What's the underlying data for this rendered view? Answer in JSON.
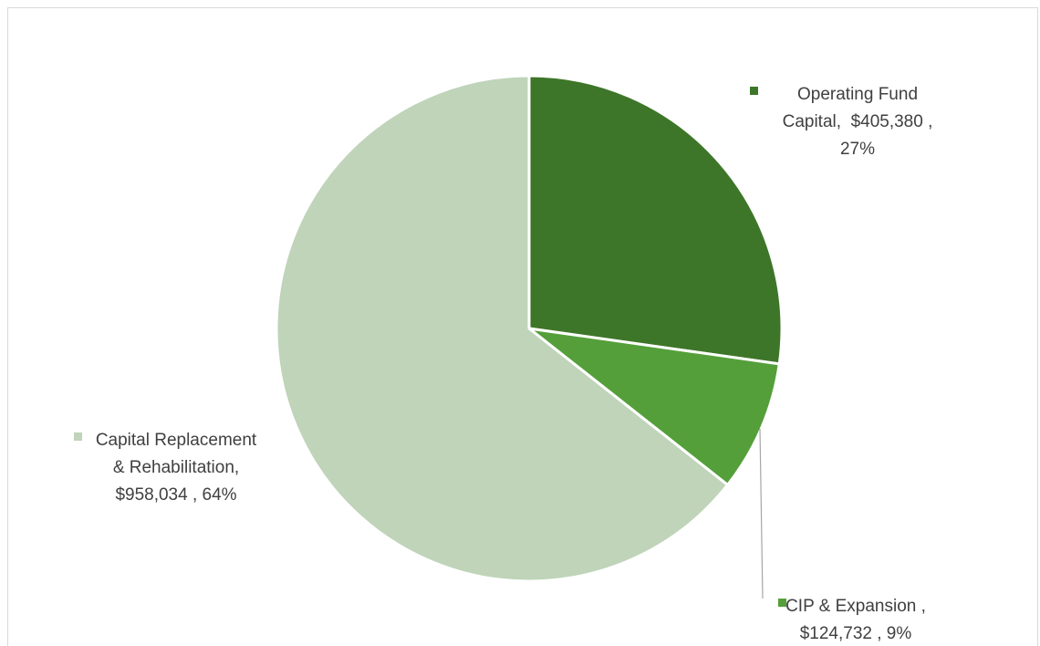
{
  "chart_data": {
    "type": "pie",
    "title": "",
    "legend": "none",
    "slices": [
      {
        "name": "Operating Fund Capital",
        "value": 405380,
        "value_text": "$405,380",
        "percent_text": "27%",
        "color": "#3e7629",
        "label_lines": [
          "Operating Fund",
          "Capital,  $405,380 ,",
          "27%"
        ]
      },
      {
        "name": "CIP & Expansion",
        "value": 124732,
        "value_text": "$124,732",
        "percent_text": "9%",
        "color": "#549f3a",
        "label_lines": [
          "CIP & Expansion ,",
          "$124,732 , 9%"
        ]
      },
      {
        "name": "Capital Replacement & Rehabilitation",
        "value": 958034,
        "value_text": "$958,034",
        "percent_text": "64%",
        "color": "#bfd4b9",
        "label_lines": [
          "Capital Replacement",
          "& Rehabilitation,",
          "$958,034 , 64%"
        ]
      }
    ]
  }
}
